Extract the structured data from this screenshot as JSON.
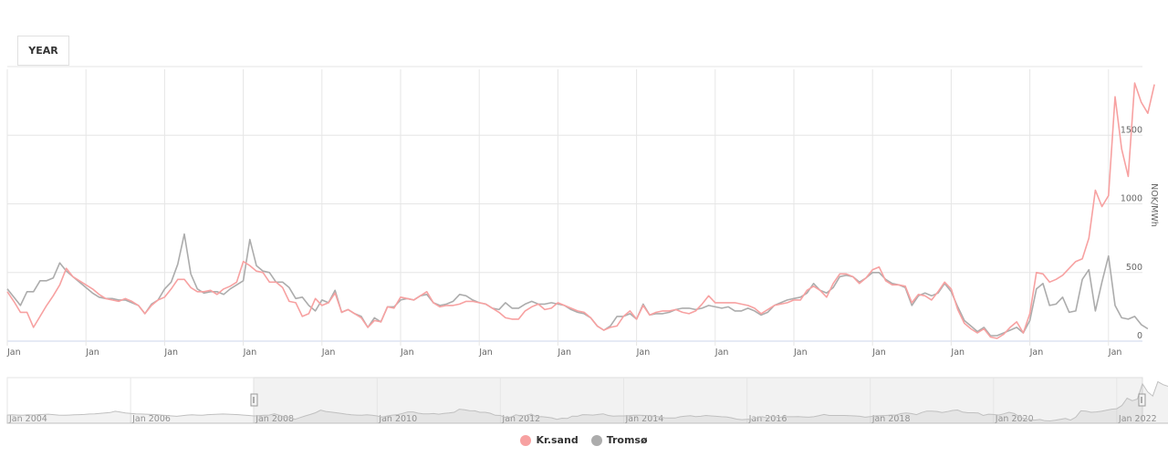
{
  "controls": {
    "range_button": "YEAR"
  },
  "colors": {
    "krsand": "#f7a1a1",
    "tromso": "#acacac",
    "grid": "#e6e6e6",
    "axis": "#ccd6eb"
  },
  "legend": [
    {
      "label": "Kr.sand",
      "color": "#f7a1a1"
    },
    {
      "label": "Tromsø",
      "color": "#acacac"
    }
  ],
  "navigator": {
    "labels": [
      "Jan 2004",
      "Jan 2006",
      "Jan 2008",
      "Jan 2010",
      "Jan 2012",
      "Jan 2014",
      "Jan 2016",
      "Jan 2018",
      "Jan 2020",
      "Jan 2022"
    ]
  },
  "chart_data": {
    "type": "line",
    "title": "",
    "xlabel": "",
    "ylabel": "NOK/MWh",
    "ylim": [
      0,
      2000
    ],
    "yticks": [
      0,
      500,
      1000,
      1500
    ],
    "grid": true,
    "legend_position": "bottom-center",
    "x_start": "2008-01",
    "x_interval": "month",
    "xtick_labels": [
      "Jan",
      "Jan",
      "Jan",
      "Jan",
      "Jan",
      "Jan",
      "Jan",
      "Jan",
      "Jan",
      "Jan",
      "Jan",
      "Jan",
      "Jan",
      "Jan",
      "Jan"
    ],
    "series": [
      {
        "name": "Kr.sand",
        "values": [
          360,
          290,
          210,
          210,
          100,
          180,
          260,
          330,
          410,
          530,
          470,
          440,
          410,
          380,
          340,
          310,
          300,
          290,
          310,
          290,
          260,
          200,
          260,
          300,
          320,
          380,
          450,
          450,
          390,
          360,
          360,
          370,
          340,
          380,
          400,
          430,
          580,
          550,
          510,
          500,
          430,
          430,
          390,
          290,
          280,
          180,
          200,
          310,
          260,
          280,
          350,
          210,
          230,
          200,
          170,
          100,
          150,
          140,
          250,
          240,
          320,
          310,
          300,
          330,
          360,
          280,
          250,
          260,
          260,
          270,
          290,
          290,
          280,
          270,
          240,
          210,
          170,
          160,
          160,
          220,
          250,
          270,
          230,
          240,
          280,
          260,
          240,
          220,
          210,
          170,
          110,
          80,
          100,
          110,
          180,
          220,
          160,
          260,
          190,
          210,
          220,
          220,
          230,
          210,
          200,
          220,
          270,
          330,
          280,
          280,
          280,
          280,
          270,
          260,
          240,
          200,
          230,
          260,
          270,
          280,
          300,
          300,
          370,
          400,
          370,
          320,
          420,
          490,
          490,
          470,
          420,
          460,
          520,
          540,
          440,
          410,
          410,
          400,
          280,
          340,
          330,
          300,
          360,
          430,
          380,
          230,
          130,
          90,
          60,
          90,
          30,
          20,
          50,
          100,
          140,
          60,
          200,
          500,
          490,
          430,
          450,
          480,
          530,
          580,
          600,
          750,
          1100,
          980,
          1060,
          1780,
          1400,
          1200,
          1880,
          1740,
          1660,
          1870
        ]
      },
      {
        "name": "Tromsø",
        "values": [
          380,
          320,
          260,
          360,
          360,
          440,
          440,
          460,
          570,
          510,
          470,
          430,
          390,
          350,
          320,
          310,
          310,
          300,
          300,
          280,
          260,
          200,
          270,
          300,
          380,
          430,
          560,
          780,
          490,
          380,
          350,
          360,
          360,
          340,
          380,
          410,
          440,
          740,
          550,
          510,
          500,
          430,
          430,
          390,
          310,
          320,
          260,
          220,
          300,
          280,
          370,
          210,
          230,
          200,
          180,
          100,
          170,
          140,
          250,
          250,
          300,
          310,
          300,
          330,
          340,
          280,
          260,
          270,
          290,
          340,
          330,
          300,
          280,
          270,
          240,
          230,
          280,
          240,
          240,
          270,
          290,
          270,
          270,
          280,
          270,
          260,
          230,
          210,
          200,
          170,
          110,
          80,
          110,
          180,
          180,
          200,
          160,
          270,
          190,
          200,
          200,
          210,
          230,
          240,
          240,
          230,
          240,
          260,
          250,
          240,
          250,
          220,
          220,
          240,
          220,
          190,
          210,
          260,
          280,
          300,
          310,
          320,
          350,
          420,
          370,
          350,
          390,
          470,
          480,
          470,
          430,
          460,
          500,
          500,
          450,
          420,
          410,
          390,
          260,
          330,
          350,
          330,
          350,
          420,
          360,
          250,
          150,
          110,
          70,
          100,
          40,
          40,
          60,
          80,
          100,
          60,
          150,
          380,
          420,
          260,
          270,
          320,
          210,
          220,
          450,
          520,
          220,
          430,
          620,
          260,
          170,
          160,
          180,
          120,
          90
        ]
      }
    ]
  }
}
